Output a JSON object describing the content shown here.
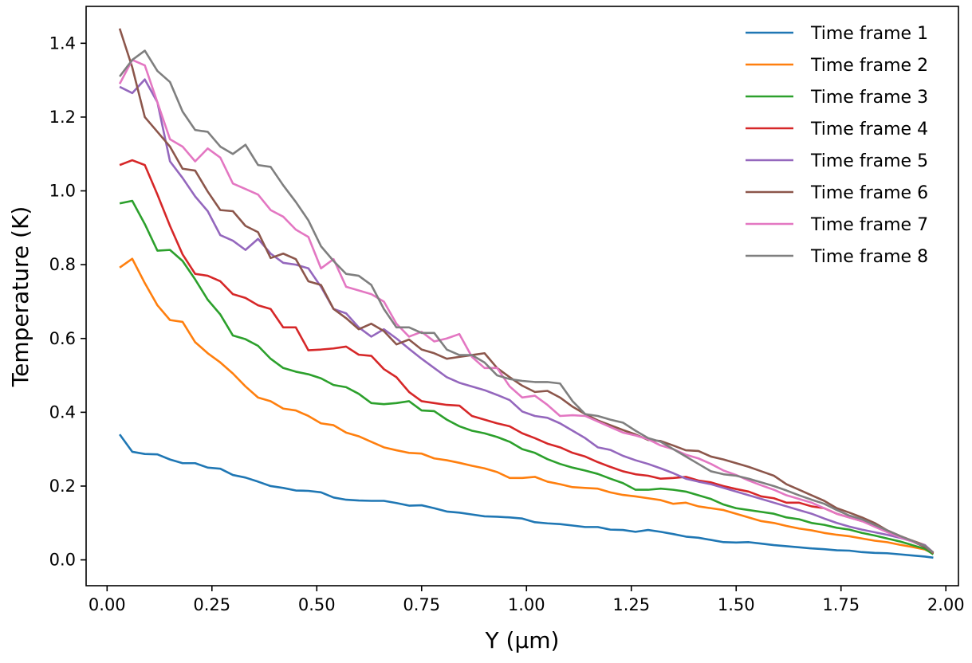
{
  "chart_data": {
    "type": "line",
    "title": "",
    "xlabel": "Y (µm)",
    "ylabel": "Temperature (K)",
    "xlim": [
      -0.05,
      2.03
    ],
    "ylim": [
      -0.07,
      1.5
    ],
    "xticks": [
      0.0,
      0.25,
      0.5,
      0.75,
      1.0,
      1.25,
      1.5,
      1.75,
      2.0
    ],
    "xtick_labels": [
      "0.00",
      "0.25",
      "0.50",
      "0.75",
      "1.00",
      "1.25",
      "1.50",
      "1.75",
      "2.00"
    ],
    "yticks": [
      0.0,
      0.2,
      0.4,
      0.6,
      0.8,
      1.0,
      1.2,
      1.4
    ],
    "ytick_labels": [
      "0.0",
      "0.2",
      "0.4",
      "0.6",
      "0.8",
      "1.0",
      "1.2",
      "1.4"
    ],
    "grid": false,
    "legend_position": "top-right",
    "x": [
      0.03,
      0.06,
      0.09,
      0.12,
      0.15,
      0.18,
      0.21,
      0.24,
      0.27,
      0.3,
      0.33,
      0.36,
      0.39,
      0.42,
      0.45,
      0.48,
      0.51,
      0.54,
      0.57,
      0.6,
      0.63,
      0.66,
      0.69,
      0.72,
      0.75,
      0.78,
      0.81,
      0.84,
      0.87,
      0.9,
      0.93,
      0.96,
      0.99,
      1.02,
      1.05,
      1.08,
      1.11,
      1.14,
      1.17,
      1.2,
      1.23,
      1.26,
      1.29,
      1.32,
      1.35,
      1.38,
      1.41,
      1.44,
      1.47,
      1.5,
      1.53,
      1.56,
      1.59,
      1.62,
      1.65,
      1.68,
      1.71,
      1.74,
      1.77,
      1.8,
      1.83,
      1.86,
      1.89,
      1.92,
      1.95,
      1.97
    ],
    "series": [
      {
        "name": "Time frame 1",
        "color": "#1f77b4",
        "values": [
          0.34,
          0.293,
          0.287,
          0.286,
          0.272,
          0.262,
          0.262,
          0.25,
          0.247,
          0.23,
          0.223,
          0.212,
          0.2,
          0.195,
          0.188,
          0.187,
          0.183,
          0.169,
          0.163,
          0.161,
          0.16,
          0.16,
          0.154,
          0.147,
          0.148,
          0.14,
          0.131,
          0.128,
          0.123,
          0.118,
          0.117,
          0.115,
          0.112,
          0.102,
          0.099,
          0.097,
          0.093,
          0.089,
          0.089,
          0.082,
          0.081,
          0.076,
          0.081,
          0.076,
          0.07,
          0.063,
          0.06,
          0.054,
          0.048,
          0.047,
          0.048,
          0.044,
          0.04,
          0.037,
          0.034,
          0.031,
          0.029,
          0.026,
          0.025,
          0.021,
          0.019,
          0.018,
          0.015,
          0.012,
          0.009,
          0.006
        ]
      },
      {
        "name": "Time frame 2",
        "color": "#ff7f0e",
        "values": [
          0.792,
          0.816,
          0.75,
          0.69,
          0.65,
          0.645,
          0.59,
          0.56,
          0.535,
          0.505,
          0.47,
          0.44,
          0.43,
          0.41,
          0.405,
          0.39,
          0.37,
          0.365,
          0.345,
          0.335,
          0.32,
          0.305,
          0.297,
          0.29,
          0.288,
          0.275,
          0.27,
          0.263,
          0.255,
          0.248,
          0.238,
          0.222,
          0.222,
          0.225,
          0.212,
          0.205,
          0.197,
          0.195,
          0.193,
          0.183,
          0.176,
          0.172,
          0.167,
          0.162,
          0.152,
          0.155,
          0.145,
          0.14,
          0.135,
          0.125,
          0.115,
          0.105,
          0.1,
          0.092,
          0.085,
          0.08,
          0.073,
          0.068,
          0.064,
          0.058,
          0.052,
          0.048,
          0.041,
          0.035,
          0.028,
          0.017
        ]
      },
      {
        "name": "Time frame 3",
        "color": "#2ca02c",
        "values": [
          0.966,
          0.973,
          0.91,
          0.838,
          0.84,
          0.81,
          0.76,
          0.705,
          0.665,
          0.608,
          0.598,
          0.58,
          0.545,
          0.52,
          0.51,
          0.503,
          0.492,
          0.474,
          0.468,
          0.45,
          0.425,
          0.422,
          0.425,
          0.43,
          0.405,
          0.403,
          0.38,
          0.362,
          0.35,
          0.343,
          0.333,
          0.32,
          0.3,
          0.29,
          0.273,
          0.26,
          0.25,
          0.242,
          0.233,
          0.22,
          0.208,
          0.19,
          0.19,
          0.193,
          0.19,
          0.185,
          0.175,
          0.165,
          0.15,
          0.14,
          0.135,
          0.13,
          0.125,
          0.115,
          0.11,
          0.1,
          0.095,
          0.087,
          0.082,
          0.073,
          0.066,
          0.058,
          0.05,
          0.04,
          0.03,
          0.015
        ]
      },
      {
        "name": "Time frame 4",
        "color": "#d62728",
        "values": [
          1.07,
          1.083,
          1.07,
          0.99,
          0.905,
          0.828,
          0.775,
          0.77,
          0.755,
          0.72,
          0.71,
          0.69,
          0.68,
          0.63,
          0.63,
          0.568,
          0.57,
          0.573,
          0.578,
          0.556,
          0.553,
          0.517,
          0.495,
          0.455,
          0.43,
          0.425,
          0.42,
          0.418,
          0.39,
          0.38,
          0.37,
          0.362,
          0.343,
          0.33,
          0.315,
          0.305,
          0.29,
          0.28,
          0.265,
          0.252,
          0.24,
          0.232,
          0.228,
          0.22,
          0.222,
          0.225,
          0.215,
          0.21,
          0.2,
          0.192,
          0.185,
          0.172,
          0.167,
          0.155,
          0.155,
          0.145,
          0.14,
          0.125,
          0.115,
          0.105,
          0.093,
          0.08,
          0.065,
          0.052,
          0.04,
          0.018
        ]
      },
      {
        "name": "Time frame 5",
        "color": "#9467bd",
        "values": [
          1.282,
          1.265,
          1.302,
          1.24,
          1.08,
          1.035,
          0.985,
          0.945,
          0.88,
          0.865,
          0.84,
          0.87,
          0.83,
          0.805,
          0.8,
          0.79,
          0.74,
          0.68,
          0.668,
          0.63,
          0.605,
          0.625,
          0.6,
          0.572,
          0.545,
          0.52,
          0.495,
          0.48,
          0.47,
          0.46,
          0.447,
          0.433,
          0.402,
          0.39,
          0.385,
          0.37,
          0.35,
          0.33,
          0.305,
          0.298,
          0.282,
          0.27,
          0.26,
          0.248,
          0.235,
          0.22,
          0.212,
          0.205,
          0.195,
          0.185,
          0.175,
          0.165,
          0.155,
          0.145,
          0.135,
          0.125,
          0.112,
          0.1,
          0.09,
          0.082,
          0.075,
          0.068,
          0.06,
          0.05,
          0.04,
          0.02
        ]
      },
      {
        "name": "Time frame 6",
        "color": "#8c564b",
        "values": [
          1.44,
          1.335,
          1.2,
          1.16,
          1.12,
          1.06,
          1.055,
          0.998,
          0.948,
          0.945,
          0.905,
          0.888,
          0.818,
          0.83,
          0.815,
          0.755,
          0.745,
          0.68,
          0.655,
          0.625,
          0.64,
          0.62,
          0.584,
          0.597,
          0.57,
          0.56,
          0.545,
          0.55,
          0.555,
          0.56,
          0.52,
          0.495,
          0.472,
          0.455,
          0.458,
          0.44,
          0.415,
          0.395,
          0.378,
          0.365,
          0.352,
          0.34,
          0.325,
          0.322,
          0.31,
          0.297,
          0.295,
          0.28,
          0.272,
          0.262,
          0.252,
          0.24,
          0.228,
          0.205,
          0.19,
          0.175,
          0.16,
          0.14,
          0.128,
          0.115,
          0.1,
          0.08,
          0.065,
          0.05,
          0.035,
          0.02
        ]
      },
      {
        "name": "Time frame 7",
        "color": "#e377c2",
        "values": [
          1.29,
          1.355,
          1.34,
          1.24,
          1.14,
          1.12,
          1.08,
          1.115,
          1.09,
          1.02,
          1.005,
          0.99,
          0.948,
          0.93,
          0.895,
          0.875,
          0.79,
          0.815,
          0.74,
          0.73,
          0.72,
          0.7,
          0.64,
          0.605,
          0.618,
          0.592,
          0.6,
          0.612,
          0.55,
          0.52,
          0.52,
          0.47,
          0.44,
          0.445,
          0.42,
          0.39,
          0.392,
          0.39,
          0.375,
          0.36,
          0.345,
          0.337,
          0.327,
          0.31,
          0.3,
          0.285,
          0.275,
          0.26,
          0.242,
          0.23,
          0.215,
          0.202,
          0.19,
          0.175,
          0.165,
          0.155,
          0.14,
          0.125,
          0.115,
          0.105,
          0.09,
          0.075,
          0.062,
          0.05,
          0.038,
          0.02
        ]
      },
      {
        "name": "Time frame 8",
        "color": "#7f7f7f",
        "values": [
          1.31,
          1.355,
          1.38,
          1.325,
          1.295,
          1.215,
          1.165,
          1.16,
          1.12,
          1.1,
          1.125,
          1.07,
          1.065,
          1.015,
          0.97,
          0.92,
          0.85,
          0.81,
          0.775,
          0.77,
          0.745,
          0.68,
          0.63,
          0.63,
          0.615,
          0.615,
          0.57,
          0.555,
          0.555,
          0.535,
          0.5,
          0.49,
          0.485,
          0.482,
          0.482,
          0.478,
          0.43,
          0.395,
          0.39,
          0.38,
          0.372,
          0.35,
          0.33,
          0.32,
          0.3,
          0.28,
          0.26,
          0.24,
          0.232,
          0.228,
          0.22,
          0.21,
          0.2,
          0.188,
          0.175,
          0.163,
          0.152,
          0.135,
          0.12,
          0.11,
          0.095,
          0.08,
          0.065,
          0.052,
          0.038,
          0.02
        ]
      }
    ]
  }
}
